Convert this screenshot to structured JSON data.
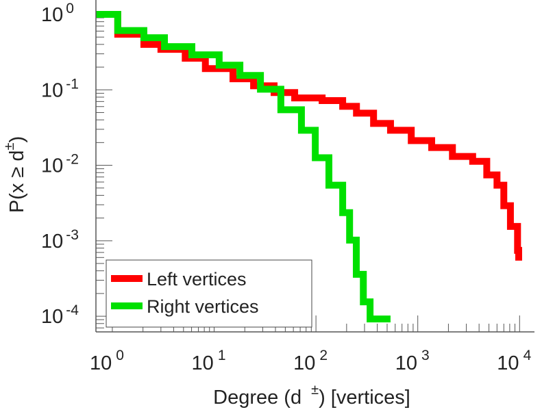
{
  "chart_data": {
    "type": "line",
    "xscale": "log",
    "yscale": "log",
    "xlabel_main": "Degree (d",
    "xlabel_sup": "±",
    "xlabel_tail": ") [vertices]",
    "ylabel_main": "P(x ≥ d",
    "ylabel_sup": "±",
    "ylabel_tail": ")",
    "xlim": [
      0.69,
      14000
    ],
    "ylim": [
      6.2e-05,
      1.55
    ],
    "xticks": [
      {
        "base": "10",
        "exp": "0",
        "value": 1
      },
      {
        "base": "10",
        "exp": "1",
        "value": 10
      },
      {
        "base": "10",
        "exp": "2",
        "value": 100
      },
      {
        "base": "10",
        "exp": "3",
        "value": 1000
      },
      {
        "base": "10",
        "exp": "4",
        "value": 10000
      }
    ],
    "yticks": [
      {
        "base": "10",
        "exp": "0",
        "value": 1
      },
      {
        "base": "10",
        "exp": "-1",
        "value": 0.1
      },
      {
        "base": "10",
        "exp": "-2",
        "value": 0.01
      },
      {
        "base": "10",
        "exp": "-3",
        "value": 0.001
      },
      {
        "base": "10",
        "exp": "-4",
        "value": 0.0001
      }
    ],
    "legend_position": "bottom-left",
    "series": [
      {
        "name": "Left vertices",
        "color": "#ff0000",
        "x": [
          0.69,
          1.13,
          2.04,
          3.0,
          5.2,
          8.2,
          15.3,
          24.4,
          38.8,
          61.8,
          115,
          183,
          250,
          368,
          540,
          863,
          1370,
          2190,
          3460,
          4760,
          6000,
          7000,
          8130,
          9550,
          9800
        ],
        "y": [
          1,
          0.545,
          0.4,
          0.344,
          0.262,
          0.191,
          0.14,
          0.113,
          0.092,
          0.078,
          0.072,
          0.0605,
          0.049,
          0.0359,
          0.0291,
          0.0212,
          0.0172,
          0.0131,
          0.0113,
          0.00746,
          0.00545,
          0.00291,
          0.00155,
          0.000746,
          0.000545
        ]
      },
      {
        "name": "Right vertices",
        "color": "#00e000",
        "x": [
          0.69,
          1.13,
          2.04,
          3.25,
          6.04,
          11.2,
          17.9,
          28.5,
          45.2,
          72,
          98.5,
          134,
          183,
          214,
          249,
          292,
          340,
          540
        ],
        "y": [
          1,
          0.61,
          0.49,
          0.374,
          0.291,
          0.212,
          0.155,
          0.102,
          0.0545,
          0.0291,
          0.0126,
          0.00545,
          0.00236,
          0.00102,
          0.000359,
          0.000155,
          9.2e-05,
          9.2e-05
        ]
      }
    ]
  }
}
